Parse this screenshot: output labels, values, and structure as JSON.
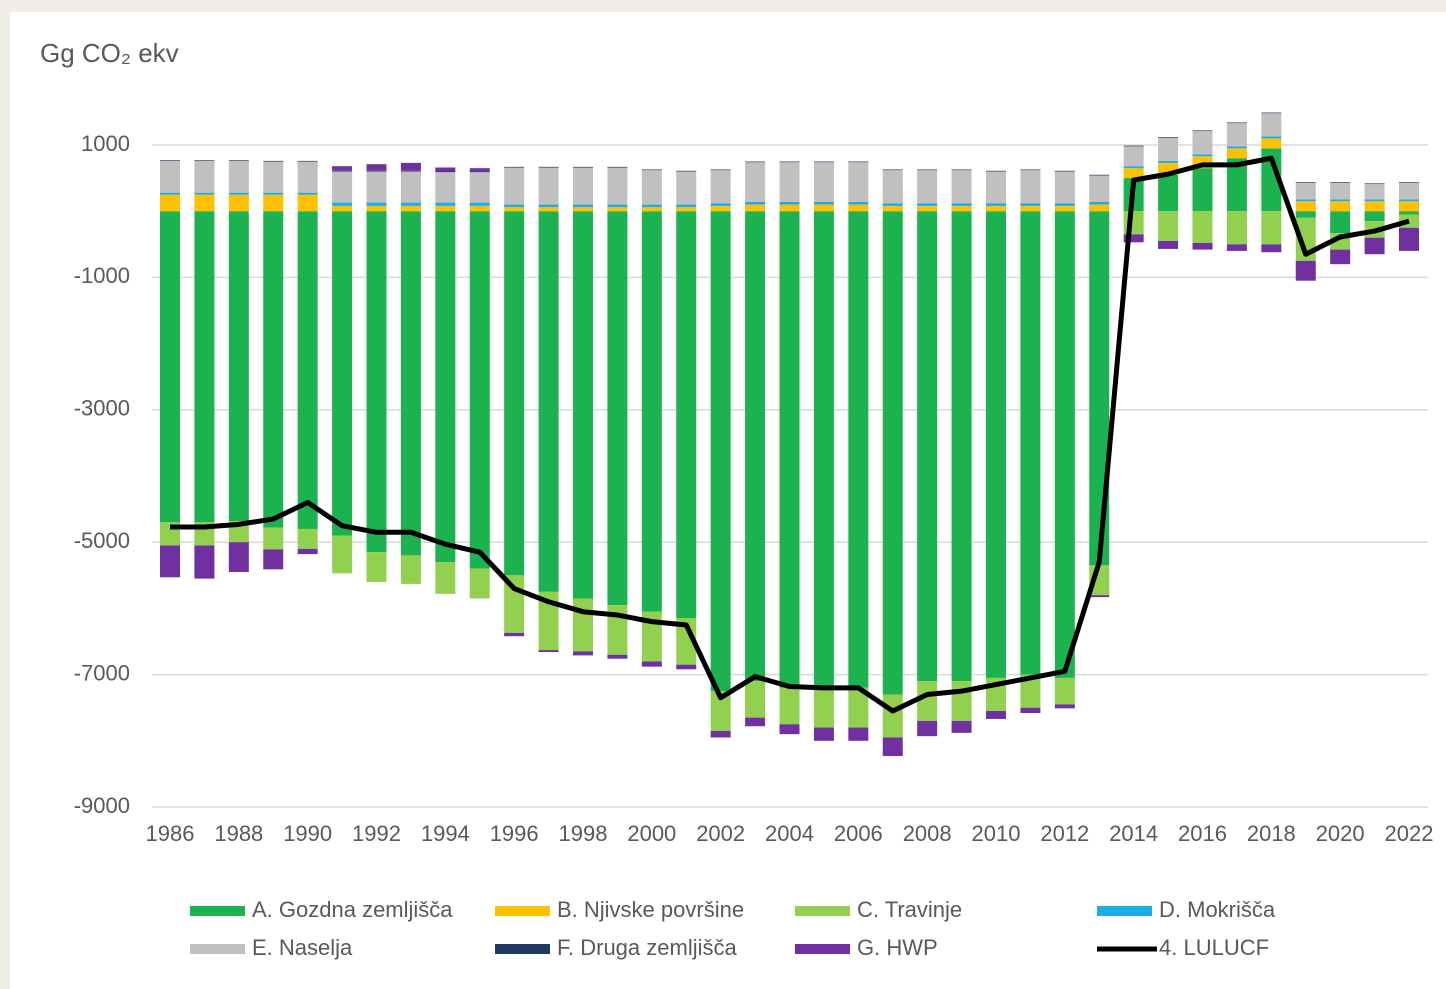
{
  "chart_data": {
    "type": "bar",
    "stacked": true,
    "title": "Gg CO₂ ekv",
    "categories": [
      "1986",
      null,
      "1988",
      null,
      "1990",
      null,
      "1992",
      null,
      "1994",
      null,
      "1996",
      null,
      "1998",
      null,
      "2000",
      null,
      "2002",
      null,
      "2004",
      null,
      "2006",
      null,
      "2008",
      null,
      "2010",
      null,
      "2012",
      null,
      "2014",
      null,
      "2016",
      null,
      "2018",
      null,
      "2020",
      null,
      "2022"
    ],
    "ylim": [
      -9000,
      1500
    ],
    "yticks": [
      1000,
      -1000,
      -3000,
      -5000,
      -7000,
      -9000
    ],
    "grid": true,
    "series": [
      {
        "name": "A. Gozdna zemljišča",
        "color": "#1db250",
        "values": [
          -4700,
          -4700,
          -4680,
          -4780,
          -4800,
          -4900,
          -5150,
          -5200,
          -5300,
          -5400,
          -5500,
          -5750,
          -5850,
          -5950,
          -6050,
          -6150,
          -7250,
          -7100,
          -7200,
          -7200,
          -7200,
          -7300,
          -7100,
          -7100,
          -7050,
          -7000,
          -7050,
          -5350,
          500,
          550,
          650,
          800,
          950,
          -100,
          -330,
          -150,
          -50
        ]
      },
      {
        "name": "B. Njivske površine",
        "color": "#ffc000",
        "values": [
          250,
          250,
          250,
          250,
          250,
          80,
          80,
          80,
          80,
          80,
          60,
          60,
          60,
          60,
          60,
          60,
          80,
          100,
          100,
          100,
          100,
          80,
          80,
          80,
          80,
          80,
          80,
          100,
          150,
          180,
          180,
          150,
          150,
          150,
          150,
          150,
          150
        ]
      },
      {
        "name": "C. Travinje",
        "color": "#92d050",
        "values": [
          -350,
          -350,
          -320,
          -330,
          -300,
          -570,
          -450,
          -430,
          -480,
          -450,
          -870,
          -880,
          -800,
          -750,
          -750,
          -700,
          -600,
          -550,
          -550,
          -600,
          -600,
          -650,
          -600,
          -600,
          -500,
          -500,
          -400,
          -450,
          -350,
          -450,
          -480,
          -500,
          -500,
          -650,
          -250,
          -250,
          -200
        ]
      },
      {
        "name": "D. Mokrišča",
        "color": "#1cade6",
        "values": [
          30,
          30,
          30,
          30,
          30,
          50,
          50,
          50,
          50,
          50,
          40,
          40,
          40,
          40,
          40,
          40,
          40,
          40,
          40,
          40,
          40,
          40,
          40,
          40,
          40,
          40,
          40,
          40,
          30,
          30,
          30,
          30,
          30,
          30,
          30,
          30,
          30
        ]
      },
      {
        "name": "E. Naselja",
        "color": "#c0c0c0",
        "values": [
          480,
          480,
          480,
          470,
          470,
          470,
          470,
          470,
          460,
          460,
          560,
          560,
          560,
          560,
          520,
          500,
          500,
          600,
          600,
          600,
          600,
          500,
          500,
          500,
          480,
          500,
          480,
          400,
          300,
          350,
          350,
          350,
          350,
          250,
          250,
          230,
          250
        ]
      },
      {
        "name": "F. Druga zemljišča",
        "color": "#1f3864",
        "values": [
          10,
          10,
          10,
          10,
          10,
          10,
          10,
          10,
          10,
          10,
          10,
          10,
          10,
          10,
          10,
          10,
          10,
          10,
          10,
          10,
          10,
          10,
          10,
          10,
          10,
          10,
          10,
          10,
          10,
          10,
          10,
          10,
          10,
          10,
          10,
          10,
          10
        ]
      },
      {
        "name": "G. HWP",
        "color": "#7030a0",
        "values": [
          -480,
          -500,
          -450,
          -300,
          -80,
          70,
          100,
          120,
          60,
          50,
          -50,
          -30,
          -60,
          -60,
          -80,
          -70,
          -100,
          -130,
          -150,
          -200,
          -200,
          -280,
          -230,
          -180,
          -120,
          -80,
          -60,
          -30,
          -120,
          -120,
          -100,
          -100,
          -120,
          -300,
          -220,
          -250,
          -350
        ]
      },
      {
        "name": "4. LULUCF",
        "color": "#000000",
        "type": "line",
        "values": [
          -4770,
          -4770,
          -4730,
          -4650,
          -4400,
          -4750,
          -4850,
          -4850,
          -5030,
          -5150,
          -5700,
          -5900,
          -6050,
          -6100,
          -6200,
          -6250,
          -7350,
          -7030,
          -7180,
          -7200,
          -7200,
          -7550,
          -7300,
          -7250,
          -7150,
          -7050,
          -6950,
          -5300,
          470,
          560,
          700,
          700,
          800,
          -650,
          -390,
          -300,
          -150
        ]
      }
    ]
  }
}
